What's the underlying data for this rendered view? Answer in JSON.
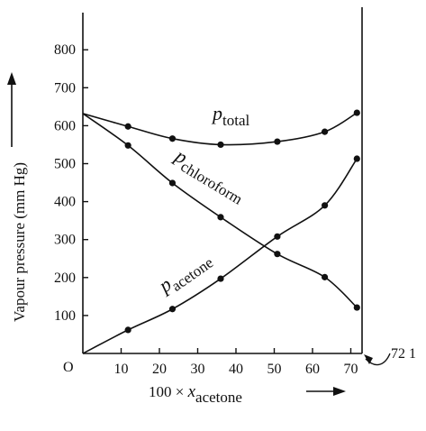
{
  "chart_data": {
    "type": "line",
    "ylabel": "Vapour pressure (mm Hg)",
    "xlabel_prefix": "100 × ",
    "xlabel_var": "x",
    "xlabel_sub": "acetone",
    "origin_label": "O",
    "xlim": [
      0,
      73
    ],
    "ylim": [
      0,
      880
    ],
    "x_ticks": [
      10,
      20,
      30,
      40,
      50,
      60,
      70
    ],
    "y_ticks": [
      100,
      200,
      300,
      400,
      500,
      600,
      700,
      800
    ],
    "annotation": "72 1",
    "series": [
      {
        "name": "p_total",
        "label_main": "p",
        "label_sub": "total",
        "x": [
          0,
          11.8,
          23.4,
          36.0,
          50.8,
          63.2,
          71.6
        ],
        "y": [
          632,
          598,
          566,
          550,
          558,
          584,
          634
        ]
      },
      {
        "name": "p_chloroform",
        "label_main": "p",
        "label_sub": "chloroform",
        "x": [
          0,
          11.8,
          23.4,
          36.0,
          50.8,
          63.2,
          71.6
        ],
        "y": [
          632,
          548,
          449,
          359,
          262,
          201,
          121
        ]
      },
      {
        "name": "p_acetone",
        "label_main": "p",
        "label_sub": "acetone",
        "x": [
          0,
          11.8,
          23.4,
          36.0,
          50.8,
          63.2,
          71.6
        ],
        "y": [
          0,
          62,
          117,
          197,
          308,
          390,
          513
        ]
      }
    ]
  }
}
